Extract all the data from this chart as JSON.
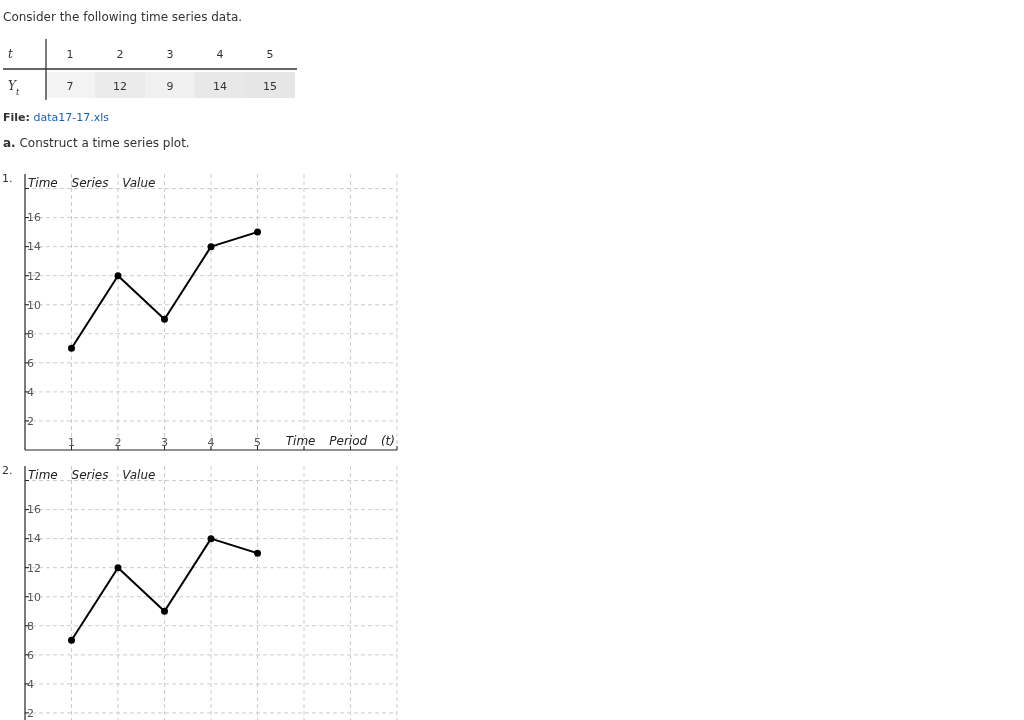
{
  "chart_data": [
    {
      "type": "heatmap",
      "title": "Consider the following time series data.",
      "xlabel": "t",
      "categories": [
        "1",
        "2",
        "3",
        "4",
        "5"
      ],
      "y_categories": [
        "Y$_{t}$"
      ],
      "cells": [
        [
          7,
          12,
          9,
          14,
          15
        ]
      ],
      "cell_labels": [
        [
          "7",
          "12",
          "9",
          "14",
          "15"
        ]
      ],
      "annotations": [
        "File: data17-17.xls",
        "a. Construct a time series plot."
      ]
    },
    {
      "type": "line",
      "ylabel": "Time Series Value",
      "xlabel": "Time Period (t)",
      "x": [
        1,
        2,
        3,
        4,
        5
      ],
      "values": [
        7,
        12,
        9,
        14,
        15
      ],
      "color": "#000000",
      "marker": "circle",
      "xlim": [
        0,
        8
      ],
      "xticks": [
        1,
        2,
        3,
        4,
        5,
        {
          "value": 6,
          "label": null
        },
        {
          "value": 7,
          "label": null
        },
        {
          "value": 8,
          "label": null
        }
      ],
      "ylim": [
        0,
        19
      ],
      "yticks": [
        2,
        4,
        6,
        8,
        10,
        12,
        14,
        16,
        {
          "value": 18,
          "label": null
        }
      ],
      "grid": true,
      "annotations": [
        "1."
      ]
    },
    {
      "type": "line",
      "ylabel": "Time Series Value",
      "x": [
        1,
        2,
        3,
        4,
        5
      ],
      "values": [
        7,
        12,
        9,
        14,
        13
      ],
      "color": "#000000",
      "marker": "circle",
      "xlim": [
        0,
        8
      ],
      "xticks": [
        1,
        2,
        3,
        4,
        5,
        {
          "value": 6,
          "label": null
        },
        {
          "value": 7,
          "label": null
        },
        {
          "value": 8,
          "label": null
        }
      ],
      "ylim": [
        0,
        19
      ],
      "yticks": [
        2,
        4,
        6,
        8,
        10,
        12,
        14,
        16,
        {
          "value": 18,
          "label": null
        }
      ],
      "grid": true,
      "tick_labels": "y",
      "annotations": [
        "2."
      ]
    }
  ]
}
